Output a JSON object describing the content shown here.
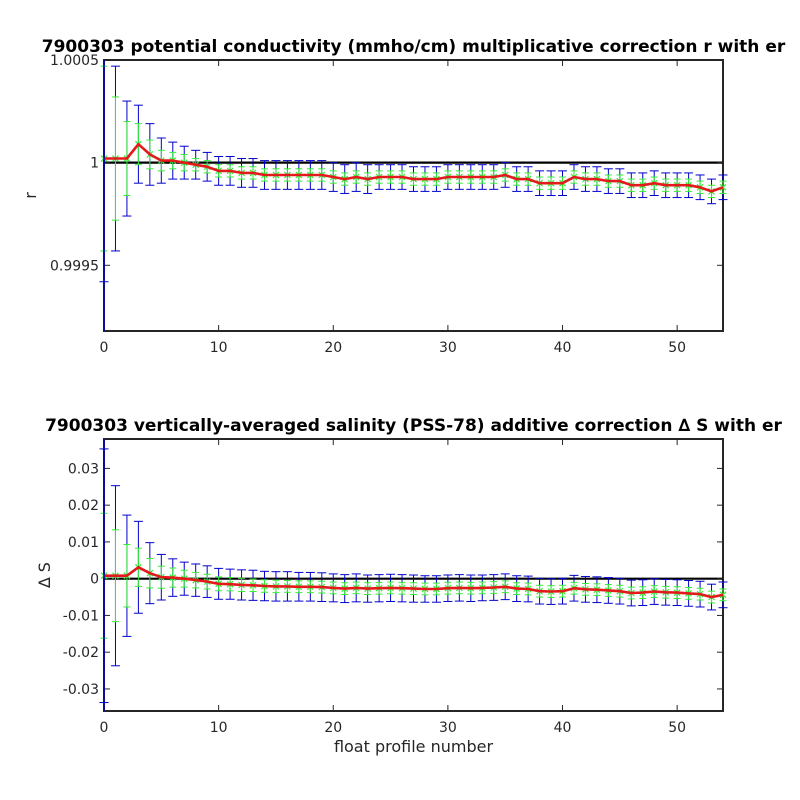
{
  "chart_data": [
    {
      "type": "line",
      "title": "7900303 potential conductivity (mmho/cm) multiplicative correction r with er",
      "xlabel": "",
      "ylabel": "r",
      "xlim": [
        0,
        54
      ],
      "ylim": [
        0.99918,
        1.0005
      ],
      "reference_value": 1.0,
      "grid": false,
      "x_ticks": [
        0,
        10,
        20,
        30,
        40,
        50
      ],
      "y_ticks": [
        0.9995,
        1.0,
        1.0005
      ],
      "x_tick_labels": [
        "0",
        "10",
        "20",
        "30",
        "40",
        "50"
      ],
      "y_tick_labels": [
        "0.9995",
        "1",
        "1.0005"
      ],
      "colors": {
        "fit": "#e31a1c",
        "ref": "#000000",
        "err_outer": "#0000cc",
        "err_inner": "#33ee33"
      },
      "x": [
        0,
        1,
        2,
        3,
        4,
        5,
        6,
        7,
        8,
        9,
        10,
        11,
        12,
        13,
        14,
        15,
        16,
        17,
        18,
        19,
        20,
        21,
        22,
        23,
        24,
        25,
        26,
        27,
        28,
        29,
        30,
        31,
        32,
        33,
        34,
        35,
        36,
        37,
        38,
        39,
        40,
        41,
        42,
        43,
        44,
        45,
        46,
        47,
        48,
        49,
        50,
        51,
        52,
        53,
        54
      ],
      "series": [
        {
          "label": "fit",
          "values": [
            1.00002,
            1.00002,
            1.00002,
            1.00009,
            1.00004,
            1.00001,
            1.00001,
            1.0,
            0.99999,
            0.99998,
            0.99996,
            0.99996,
            0.99995,
            0.99995,
            0.99994,
            0.99994,
            0.99994,
            0.99994,
            0.99994,
            0.99994,
            0.99993,
            0.99992,
            0.99993,
            0.99992,
            0.99993,
            0.99993,
            0.99993,
            0.99992,
            0.99992,
            0.99992,
            0.99993,
            0.99993,
            0.99993,
            0.99993,
            0.99993,
            0.99994,
            0.99992,
            0.99992,
            0.9999,
            0.9999,
            0.9999,
            0.99993,
            0.99992,
            0.99992,
            0.99991,
            0.99991,
            0.99989,
            0.99989,
            0.9999,
            0.99989,
            0.99989,
            0.99989,
            0.99988,
            0.99986,
            0.99988
          ]
        },
        {
          "label": "error (outer)",
          "half_width": [
            0.0006,
            0.00045,
            0.00028,
            0.00019,
            0.00015,
            0.00011,
            9e-05,
            8e-05,
            7e-05,
            7e-05,
            7e-05,
            7e-05,
            7e-05,
            7e-05,
            7e-05,
            7e-05,
            7e-05,
            7e-05,
            7e-05,
            7e-05,
            7e-05,
            7e-05,
            7e-05,
            7e-05,
            6e-05,
            6e-05,
            6e-05,
            6e-05,
            6e-05,
            6e-05,
            6e-05,
            6e-05,
            6e-05,
            6e-05,
            6e-05,
            6e-05,
            6e-05,
            6e-05,
            6e-05,
            6e-05,
            6e-05,
            6e-05,
            6e-05,
            6e-05,
            6e-05,
            6e-05,
            6e-05,
            6e-05,
            6e-05,
            6e-05,
            6e-05,
            6e-05,
            6e-05,
            6e-05,
            6e-05
          ]
        },
        {
          "label": "error (inner)",
          "half_width": [
            0.00045,
            0.0003,
            0.00018,
            0.0001,
            7e-05,
            5e-05,
            4e-05,
            4e-05,
            3e-05,
            3e-05,
            3e-05,
            3e-05,
            3e-05,
            3e-05,
            3e-05,
            3e-05,
            3e-05,
            3e-05,
            3e-05,
            3e-05,
            3e-05,
            3e-05,
            3e-05,
            3e-05,
            3e-05,
            3e-05,
            3e-05,
            3e-05,
            3e-05,
            3e-05,
            3e-05,
            3e-05,
            3e-05,
            3e-05,
            3e-05,
            3e-05,
            3e-05,
            3e-05,
            3e-05,
            3e-05,
            3e-05,
            3e-05,
            3e-05,
            3e-05,
            3e-05,
            3e-05,
            3e-05,
            3e-05,
            3e-05,
            3e-05,
            3e-05,
            3e-05,
            3e-05,
            3e-05,
            3e-05
          ]
        }
      ]
    },
    {
      "type": "line",
      "title": "7900303 vertically-averaged salinity (PSS-78) additive correction ∆ S with er",
      "xlabel": "float profile number",
      "ylabel": "∆ S",
      "xlim": [
        0,
        54
      ],
      "ylim": [
        -0.036,
        0.038
      ],
      "reference_value": 0.0,
      "grid": false,
      "x_ticks": [
        0,
        10,
        20,
        30,
        40,
        50
      ],
      "y_ticks": [
        -0.03,
        -0.02,
        -0.01,
        0,
        0.01,
        0.02,
        0.03
      ],
      "x_tick_labels": [
        "0",
        "10",
        "20",
        "30",
        "40",
        "50"
      ],
      "y_tick_labels": [
        "-0.03",
        "-0.02",
        "-0.01",
        "0",
        "0.01",
        "0.02",
        "0.03"
      ],
      "colors": {
        "fit": "#e31a1c",
        "ref": "#000000",
        "err_outer": "#0000cc",
        "err_inner": "#33ee33"
      },
      "x": [
        0,
        1,
        2,
        3,
        4,
        5,
        6,
        7,
        8,
        9,
        10,
        11,
        12,
        13,
        14,
        15,
        16,
        17,
        18,
        19,
        20,
        21,
        22,
        23,
        24,
        25,
        26,
        27,
        28,
        29,
        30,
        31,
        32,
        33,
        34,
        35,
        36,
        37,
        38,
        39,
        40,
        41,
        42,
        43,
        44,
        45,
        46,
        47,
        48,
        49,
        50,
        51,
        52,
        53,
        54
      ],
      "series": [
        {
          "label": "fit",
          "values": [
            0.0008,
            0.0008,
            0.0008,
            0.0031,
            0.0015,
            0.0004,
            0.0003,
            0.0,
            -0.0004,
            -0.0008,
            -0.0014,
            -0.0015,
            -0.0017,
            -0.0018,
            -0.002,
            -0.0021,
            -0.0021,
            -0.0022,
            -0.0022,
            -0.0023,
            -0.0025,
            -0.0027,
            -0.0025,
            -0.0027,
            -0.0026,
            -0.0025,
            -0.0026,
            -0.0027,
            -0.0028,
            -0.0028,
            -0.0026,
            -0.0025,
            -0.0026,
            -0.0025,
            -0.0024,
            -0.0022,
            -0.0027,
            -0.0028,
            -0.0034,
            -0.0035,
            -0.0034,
            -0.0026,
            -0.0029,
            -0.003,
            -0.0032,
            -0.0034,
            -0.0039,
            -0.0038,
            -0.0035,
            -0.0037,
            -0.0038,
            -0.004,
            -0.0042,
            -0.005,
            -0.0044
          ]
        },
        {
          "label": "error (outer)",
          "half_width": [
            0.0345,
            0.0245,
            0.0165,
            0.0125,
            0.0083,
            0.0062,
            0.0051,
            0.0045,
            0.0044,
            0.0043,
            0.0042,
            0.0041,
            0.0041,
            0.0041,
            0.004,
            0.004,
            0.004,
            0.0039,
            0.0039,
            0.0039,
            0.0038,
            0.0038,
            0.0038,
            0.0037,
            0.0037,
            0.0037,
            0.0037,
            0.0037,
            0.0036,
            0.0036,
            0.0036,
            0.0036,
            0.0036,
            0.0035,
            0.0035,
            0.0035,
            0.0035,
            0.0035,
            0.0035,
            0.0035,
            0.0035,
            0.0035,
            0.0035,
            0.0035,
            0.0035,
            0.0035,
            0.0035,
            0.0035,
            0.0035,
            0.0035,
            0.0035,
            0.0035,
            0.0035,
            0.0035,
            0.0035
          ]
        },
        {
          "label": "error (inner)",
          "half_width": [
            0.017,
            0.0125,
            0.0085,
            0.0052,
            0.004,
            0.003,
            0.0026,
            0.0023,
            0.0021,
            0.002,
            0.0019,
            0.0018,
            0.0018,
            0.0017,
            0.0017,
            0.0017,
            0.0016,
            0.0016,
            0.0016,
            0.0016,
            0.0016,
            0.0016,
            0.0016,
            0.0016,
            0.0016,
            0.0016,
            0.0016,
            0.0016,
            0.0016,
            0.0016,
            0.0016,
            0.0016,
            0.0016,
            0.0016,
            0.0016,
            0.0016,
            0.0016,
            0.0016,
            0.0016,
            0.0016,
            0.0016,
            0.0016,
            0.0016,
            0.0016,
            0.0016,
            0.0016,
            0.0016,
            0.0016,
            0.0016,
            0.0016,
            0.0016,
            0.0016,
            0.0016,
            0.0016,
            0.0016
          ]
        }
      ]
    }
  ]
}
